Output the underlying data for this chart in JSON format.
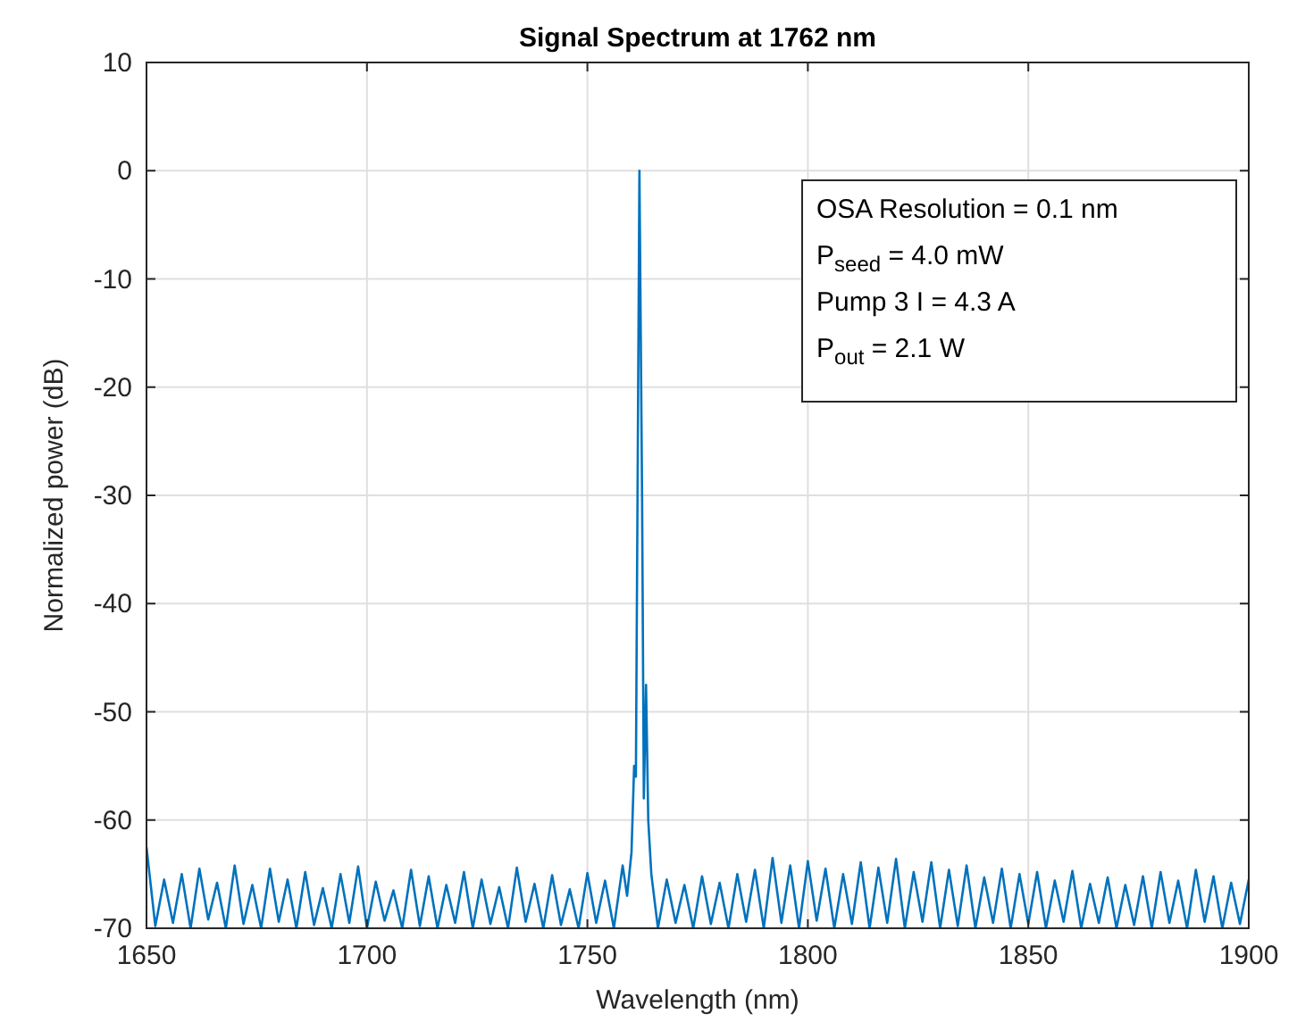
{
  "chart_data": {
    "type": "line",
    "title": "Signal Spectrum at 1762 nm",
    "xlabel": "Wavelength (nm)",
    "ylabel": "Normalized power (dB)",
    "xlim": [
      1650,
      1900
    ],
    "xticks": [
      1650,
      1700,
      1750,
      1800,
      1850,
      1900
    ],
    "ylim": [
      -70,
      10
    ],
    "yticks": [
      -70,
      -60,
      -50,
      -40,
      -30,
      -20,
      -10,
      0,
      10
    ],
    "grid": true,
    "annotations": [
      "OSA Resolution = 0.1 nm",
      "P$_{seed}$ = 4.0 mW",
      "Pump 3 I = 4.3 A",
      "P$_{out}$ = 2.1 W"
    ],
    "series": [
      {
        "color": "#0072bd",
        "x": [
          1650,
          1652,
          1654,
          1656,
          1658,
          1660,
          1662,
          1664,
          1666,
          1668,
          1670,
          1672,
          1674,
          1676,
          1678,
          1680,
          1682,
          1684,
          1686,
          1688,
          1690,
          1692,
          1694,
          1696,
          1698,
          1700,
          1702,
          1704,
          1706,
          1708,
          1710,
          1712,
          1714,
          1716,
          1718,
          1720,
          1722,
          1724,
          1726,
          1728,
          1730,
          1732,
          1734,
          1736,
          1738,
          1740,
          1742,
          1744,
          1746,
          1748,
          1750,
          1752,
          1754,
          1756,
          1758,
          1759,
          1760,
          1760.6,
          1761,
          1761.8,
          1762.4,
          1762.8,
          1763.3,
          1763.8,
          1764.5,
          1766,
          1768,
          1770,
          1772,
          1774,
          1776,
          1778,
          1780,
          1782,
          1784,
          1786,
          1788,
          1790,
          1792,
          1794,
          1796,
          1798,
          1800,
          1802,
          1804,
          1806,
          1808,
          1810,
          1812,
          1814,
          1816,
          1818,
          1820,
          1822,
          1824,
          1826,
          1828,
          1830,
          1832,
          1834,
          1836,
          1838,
          1840,
          1842,
          1844,
          1846,
          1848,
          1850,
          1852,
          1854,
          1856,
          1858,
          1860,
          1862,
          1864,
          1866,
          1868,
          1870,
          1872,
          1874,
          1876,
          1878,
          1880,
          1882,
          1884,
          1886,
          1888,
          1890,
          1892,
          1894,
          1896,
          1898,
          1900
        ],
        "values": [
          -62.5,
          -69.8,
          -65.5,
          -69.5,
          -65,
          -70,
          -64.5,
          -69.2,
          -65.8,
          -70,
          -64.2,
          -69.6,
          -66,
          -70,
          -64.5,
          -69.4,
          -65.5,
          -70,
          -64.8,
          -69.7,
          -66.3,
          -70,
          -65,
          -69.5,
          -64.3,
          -70,
          -65.7,
          -69.3,
          -66.5,
          -70,
          -64.6,
          -69.8,
          -65.2,
          -70,
          -66,
          -69.5,
          -64.8,
          -70,
          -65.5,
          -69.6,
          -66.2,
          -70,
          -64.4,
          -69.4,
          -65.9,
          -70,
          -65.1,
          -69.7,
          -66.4,
          -70,
          -64.9,
          -69.5,
          -65.6,
          -70,
          -64.2,
          -67,
          -63,
          -55,
          -56,
          0,
          -30,
          -58,
          -47.5,
          -60,
          -65,
          -70,
          -65.5,
          -69.5,
          -66,
          -70,
          -65.2,
          -69.6,
          -65.8,
          -70,
          -65,
          -69.4,
          -64.6,
          -70,
          -63.5,
          -69.5,
          -64.2,
          -70,
          -63.8,
          -69.3,
          -64.5,
          -70,
          -65,
          -69.6,
          -63.9,
          -70,
          -64.4,
          -69.5,
          -63.6,
          -70,
          -64.8,
          -69.4,
          -63.9,
          -70,
          -64.6,
          -69.8,
          -64.2,
          -70,
          -65.3,
          -69.5,
          -64.5,
          -70,
          -65,
          -69.6,
          -64.8,
          -70,
          -65.6,
          -69.4,
          -64.7,
          -70,
          -65.9,
          -69.5,
          -65.3,
          -70,
          -66,
          -69.7,
          -65.2,
          -70,
          -64.8,
          -69.5,
          -65.6,
          -70,
          -64.6,
          -69.4,
          -65.2,
          -70,
          -65.8,
          -69.6,
          -65.5
        ]
      }
    ]
  }
}
